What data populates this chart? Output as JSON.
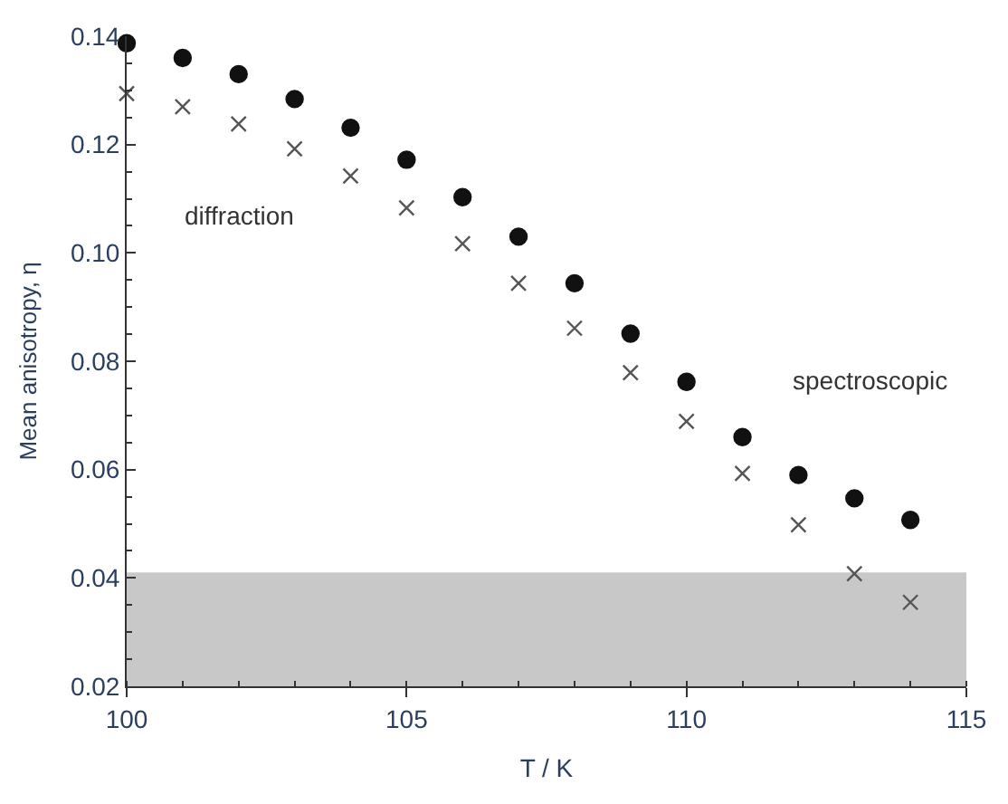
{
  "chart_data": {
    "type": "scatter",
    "xlabel": "T / K",
    "ylabel": "Mean anisotropy, η",
    "x": [
      100,
      101,
      102,
      103,
      104,
      105,
      106,
      107,
      108,
      109,
      110,
      111,
      112,
      113,
      114
    ],
    "series": [
      {
        "name": "spectroscopic",
        "color": "#111111",
        "marker": "circle",
        "values": [
          0.1387,
          0.136,
          0.133,
          0.1284,
          0.1231,
          0.1172,
          0.1103,
          0.103,
          0.0944,
          0.0851,
          0.0762,
          0.066,
          0.059,
          0.0547,
          0.0507
        ]
      },
      {
        "name": "diffraction",
        "color": "#555555",
        "marker": "cross",
        "values": [
          0.1294,
          0.127,
          0.1238,
          0.1192,
          0.1142,
          0.1083,
          0.1017,
          0.0944,
          0.0861,
          0.0779,
          0.0689,
          0.0593,
          0.0498,
          0.0408,
          0.0355
        ]
      }
    ],
    "bands": [
      {
        "axis": "y",
        "from": 0.02,
        "to": 0.041,
        "color": "#c8c8c8"
      }
    ],
    "xlim": [
      100,
      115
    ],
    "xticks": [
      100,
      105,
      110,
      115
    ],
    "ylim": [
      0.02,
      0.14
    ],
    "yticks": [
      {
        "value": 0.02,
        "label": "0.02"
      },
      {
        "value": 0.04,
        "label": "0.04"
      },
      {
        "value": 0.06,
        "label": "0.06"
      },
      {
        "value": 0.08,
        "label": "0.08"
      },
      {
        "value": 0.1,
        "label": "0.10"
      },
      {
        "value": 0.12,
        "label": "0.12"
      },
      {
        "value": 0.14,
        "label": "0.14"
      }
    ],
    "grid": false,
    "legend": false
  }
}
